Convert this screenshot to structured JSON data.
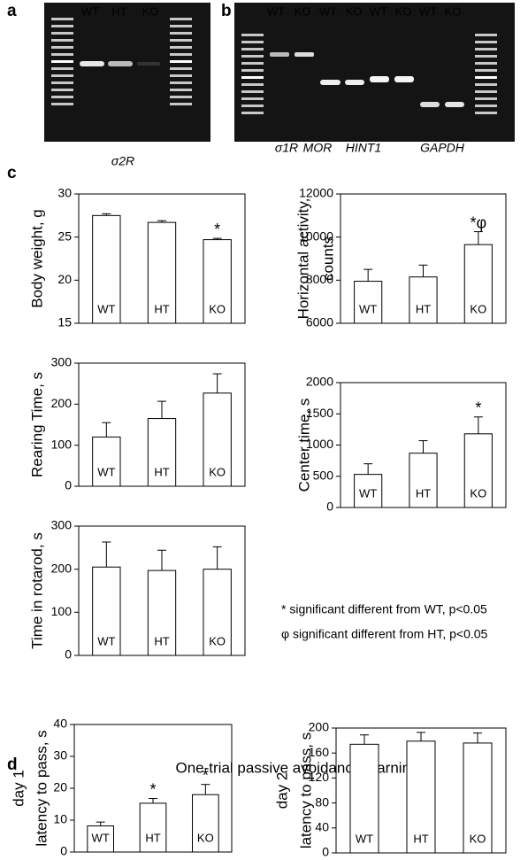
{
  "panel_labels": [
    "a",
    "b",
    "c",
    "d"
  ],
  "gel_a": {
    "lanes": [
      "WT",
      "HT",
      "KO"
    ],
    "gene": "σ2R"
  },
  "gel_b": {
    "lanes": [
      "WT",
      "KO",
      "WT",
      "KO",
      "WT",
      "KO",
      "WT",
      "KO"
    ],
    "genes": [
      "σ1R",
      "MOR",
      "HINT1",
      "GAPDH"
    ]
  },
  "notes": [
    "* significant different from WT, p<0.05",
    "φ significant different from HT, p<0.05"
  ],
  "panel_d_title": "One-trial passive avoidance learning",
  "chart_data": [
    {
      "type": "bar",
      "ylabel": [
        "Body weight, g"
      ],
      "categories": [
        "WT",
        "HT",
        "KO"
      ],
      "values": [
        27.5,
        26.7,
        24.7
      ],
      "errors": [
        0.2,
        0.2,
        0.15
      ],
      "significance": [
        null,
        null,
        "*"
      ],
      "ylim": [
        15,
        30
      ],
      "yticks": [
        15,
        20,
        25,
        30
      ],
      "color": "#ffffff"
    },
    {
      "type": "bar",
      "ylabel": [
        "Horizontal activity,",
        "counts"
      ],
      "categories": [
        "WT",
        "HT",
        "KO"
      ],
      "values": [
        7950,
        8150,
        9650
      ],
      "errors": [
        550,
        550,
        600
      ],
      "significance": [
        null,
        null,
        "*φ"
      ],
      "ylim": [
        6000,
        12000
      ],
      "yticks": [
        6000,
        8000,
        10000,
        12000
      ],
      "color": "#ffffff"
    },
    {
      "type": "bar",
      "ylabel": [
        "Rearing Time, s"
      ],
      "categories": [
        "WT",
        "HT",
        "KO"
      ],
      "values": [
        120,
        165,
        227
      ],
      "errors": [
        35,
        42,
        47
      ],
      "significance": [
        null,
        null,
        null
      ],
      "ylim": [
        0,
        300
      ],
      "yticks": [
        0,
        100,
        200,
        300
      ],
      "color": "#ffffff"
    },
    {
      "type": "bar",
      "ylabel": [
        "Center time, s"
      ],
      "categories": [
        "WT",
        "HT",
        "KO"
      ],
      "values": [
        530,
        870,
        1180
      ],
      "errors": [
        170,
        200,
        270
      ],
      "significance": [
        null,
        null,
        "*"
      ],
      "ylim": [
        0,
        2000
      ],
      "yticks": [
        0,
        500,
        1000,
        1500,
        2000
      ],
      "color": "#ffffff"
    },
    {
      "type": "bar",
      "ylabel": [
        "Time in rotarod, s"
      ],
      "categories": [
        "WT",
        "HT",
        "KO"
      ],
      "values": [
        205,
        197,
        200
      ],
      "errors": [
        58,
        47,
        52
      ],
      "significance": [
        null,
        null,
        null
      ],
      "ylim": [
        0,
        300
      ],
      "yticks": [
        0,
        100,
        200,
        300
      ],
      "color": "#ffffff"
    },
    {
      "type": "bar",
      "ylabel": [
        "day 1",
        "latency to pass, s"
      ],
      "categories": [
        "WT",
        "HT",
        "KO"
      ],
      "values": [
        8.2,
        15.3,
        18
      ],
      "errors": [
        1.2,
        1.5,
        3.2
      ],
      "significance": [
        null,
        "*",
        "*"
      ],
      "ylim": [
        0,
        40
      ],
      "yticks": [
        0,
        10,
        20,
        30,
        40
      ],
      "color": "#ffffff"
    },
    {
      "type": "bar",
      "ylabel": [
        "day 2",
        "latency to pass, s"
      ],
      "categories": [
        "WT",
        "HT",
        "KO"
      ],
      "values": [
        174,
        179,
        176
      ],
      "errors": [
        15,
        14,
        16
      ],
      "significance": [
        null,
        null,
        null
      ],
      "ylim": [
        0,
        200
      ],
      "yticks": [
        0,
        40,
        80,
        120,
        160,
        200
      ],
      "color": "#ffffff"
    }
  ]
}
